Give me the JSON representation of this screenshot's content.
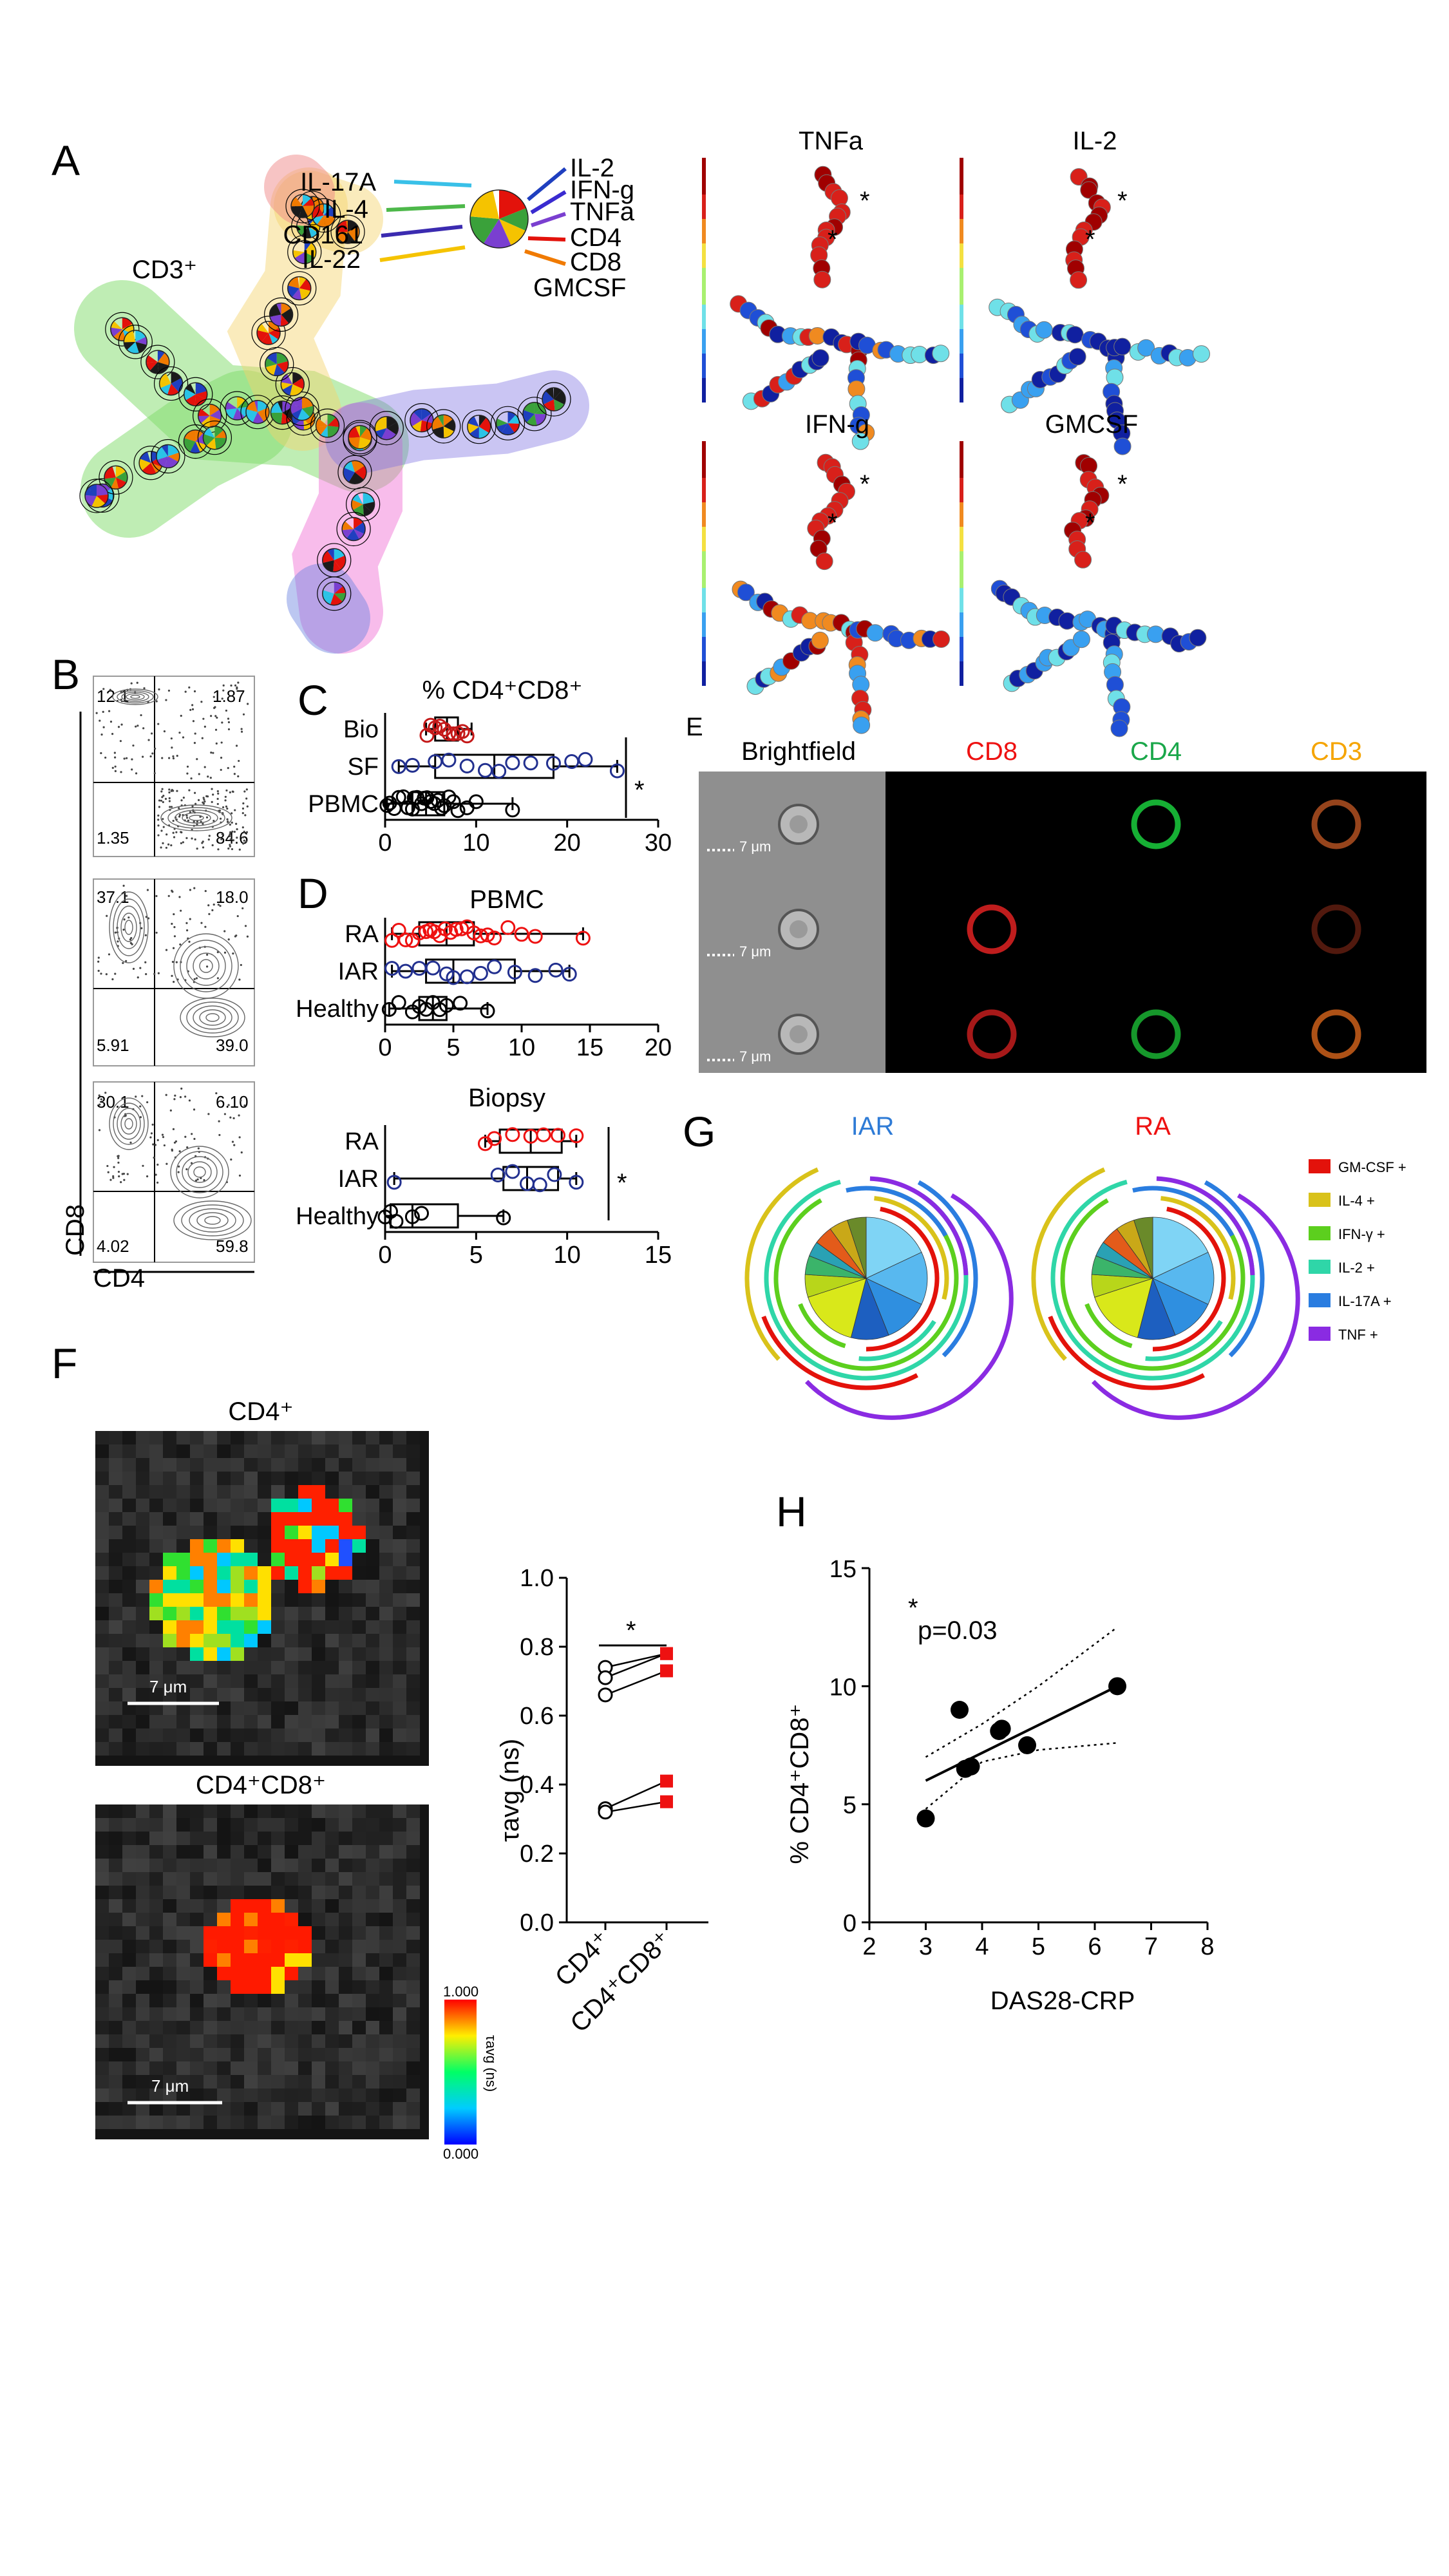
{
  "panels": {
    "A": "A",
    "B": "B",
    "C": "C",
    "D": "D",
    "E": "E",
    "F": "F",
    "G": "G",
    "H": "H"
  },
  "colors": {
    "red": "#e11",
    "blue": "#22308f",
    "black": "#000000",
    "green": "#2bb34a",
    "orange": "#f5a400",
    "purple": "#7d2bd4",
    "cyan": "#2ec4b6"
  },
  "panelA": {
    "cd3_label": "CD3⁺",
    "legend_left": [
      "IL-17A",
      "IL-4",
      "CD161",
      "IL-22"
    ],
    "legend_right": [
      "IL-2",
      "IFN-g",
      "TNFa",
      "CD4",
      "CD8",
      "GMCSF"
    ],
    "heatmap_titles": [
      "TNFa",
      "IL-2",
      "IFN-g",
      "GMCSF"
    ],
    "star": "*"
  },
  "panelB": {
    "xlabel": "CD4",
    "ylabel": "CD8",
    "plots": [
      {
        "ul": "12.1",
        "ur": "1.87",
        "ll": "1.35",
        "lr": "84.6"
      },
      {
        "ul": "37.1",
        "ur": "18.0",
        "ll": "5.91",
        "lr": "39.0"
      },
      {
        "ul": "30.1",
        "ur": "6.10",
        "ll": "4.02",
        "lr": "59.8"
      }
    ]
  },
  "panelC": {
    "title": "% CD4⁺CD8⁺",
    "star": "*",
    "chart_data": {
      "type": "box",
      "title": "% CD4+CD8+",
      "categories": [
        "Bio",
        "SF",
        "PBMC"
      ],
      "xlim": [
        0,
        30
      ],
      "xticks": [
        "0",
        "10",
        "20",
        "30"
      ],
      "boxes": [
        {
          "name": "Bio",
          "min": 4.5,
          "q1": 5.5,
          "median": 6.8,
          "q3": 8.0,
          "max": 9.5
        },
        {
          "name": "SF",
          "min": 1.5,
          "q1": 5.5,
          "median": 12.0,
          "q3": 18.5,
          "max": 25.5
        },
        {
          "name": "PBMC",
          "min": 0.2,
          "q1": 3.0,
          "median": 4.5,
          "q3": 6.5,
          "max": 14.0
        }
      ],
      "points": {
        "Bio": [
          4.6,
          5.0,
          5.5,
          6.0,
          6.5,
          7.0,
          7.5,
          8.0,
          8.5,
          9.0
        ],
        "SF": [
          1.5,
          3.0,
          5.5,
          7.0,
          9.0,
          11.0,
          12.5,
          14.0,
          16.0,
          18.5,
          20.5,
          22.0,
          25.5
        ],
        "PBMC": [
          0.2,
          0.5,
          1.0,
          1.5,
          2.0,
          2.5,
          3.0,
          3.2,
          3.5,
          4.0,
          4.3,
          4.6,
          5.0,
          5.4,
          5.8,
          6.2,
          6.5,
          7.0,
          7.5,
          8.0,
          9.0,
          10.0,
          14.0
        ]
      }
    }
  },
  "panelD": {
    "top_title": "PBMC",
    "bottom_title": "Biopsy",
    "star": "*",
    "top_chart": {
      "type": "box",
      "categories": [
        "RA",
        "IAR",
        "Healthy"
      ],
      "xlim": [
        0,
        20
      ],
      "xticks": [
        "0",
        "5",
        "10",
        "15",
        "20"
      ],
      "boxes": [
        {
          "name": "RA",
          "min": 0.5,
          "q1": 2.5,
          "median": 4.5,
          "q3": 6.5,
          "max": 14.5
        },
        {
          "name": "IAR",
          "min": 0.5,
          "q1": 3.0,
          "median": 5.0,
          "q3": 9.5,
          "max": 13.5
        },
        {
          "name": "Healthy",
          "min": 0.3,
          "q1": 2.5,
          "median": 3.5,
          "q3": 4.5,
          "max": 7.5
        }
      ],
      "points": {
        "RA": [
          0.5,
          1.0,
          1.5,
          2.0,
          2.5,
          3.0,
          3.3,
          3.6,
          4.0,
          4.4,
          4.8,
          5.2,
          5.6,
          6.0,
          6.5,
          7.0,
          7.5,
          8.0,
          9.0,
          10.0,
          11.0,
          14.5
        ],
        "IAR": [
          0.5,
          1.5,
          2.5,
          3.5,
          4.5,
          5.0,
          6.0,
          7.0,
          8.0,
          9.5,
          11.0,
          12.5,
          13.5
        ],
        "Healthy": [
          0.3,
          1.0,
          2.0,
          2.5,
          3.0,
          3.5,
          4.0,
          4.5,
          5.5,
          7.5
        ]
      }
    },
    "bottom_chart": {
      "type": "box",
      "categories": [
        "RA",
        "IAR",
        "Healthy"
      ],
      "xlim": [
        0,
        15
      ],
      "xticks": [
        "0",
        "5",
        "10",
        "15"
      ],
      "boxes": [
        {
          "name": "RA",
          "min": 5.5,
          "q1": 6.3,
          "median": 8.0,
          "q3": 9.7,
          "max": 10.5
        },
        {
          "name": "IAR",
          "min": 0.5,
          "q1": 6.5,
          "median": 7.8,
          "q3": 9.5,
          "max": 10.5
        },
        {
          "name": "Healthy",
          "min": 0.0,
          "q1": 0.3,
          "median": 1.5,
          "q3": 4.0,
          "max": 6.5
        }
      ],
      "points": {
        "RA": [
          5.5,
          6.0,
          7.0,
          8.0,
          8.7,
          9.5,
          10.5
        ],
        "IAR": [
          0.5,
          6.2,
          7.0,
          7.8,
          8.5,
          9.3,
          10.5
        ],
        "Healthy": [
          0.0,
          0.3,
          0.6,
          1.5,
          2.0,
          6.5
        ]
      }
    }
  },
  "panelE": {
    "headers": [
      "Brightfield",
      "CD8",
      "CD4",
      "CD3"
    ],
    "scale_label": "7 μm"
  },
  "panelF": {
    "title_top": "CD4⁺",
    "title_bottom": "CD4⁺CD8⁺",
    "scale_label": "7 μm",
    "colorbar_max": "1.000",
    "colorbar_min": "0.000",
    "colorbar_label": "τavg (ns)",
    "star": "*",
    "chart_data": {
      "type": "scatter",
      "ylabel": "τavg (ns)",
      "categories": [
        "CD4⁺",
        "CD4⁺CD8⁺"
      ],
      "ylim": [
        0,
        1.0
      ],
      "yticks": [
        "0.0",
        "0.2",
        "0.4",
        "0.6",
        "0.8",
        "1.0"
      ],
      "pairs": [
        [
          0.74,
          0.78
        ],
        [
          0.71,
          0.78
        ],
        [
          0.66,
          0.73
        ],
        [
          0.33,
          0.41
        ],
        [
          0.32,
          0.35
        ]
      ]
    }
  },
  "panelG": {
    "titles": [
      "IAR",
      "RA"
    ],
    "legend": [
      "GM-CSF +",
      "IL-4 +",
      "IFN-γ +",
      "IL-2 +",
      "IL-17A +",
      "TNF +"
    ],
    "legend_colors": [
      "#e3120b",
      "#d9c21a",
      "#5ccf1e",
      "#2fd6a8",
      "#2a7de0",
      "#8a2be2"
    ]
  },
  "panelH": {
    "pvalue": "p=0.03",
    "star": "*",
    "chart_data": {
      "type": "scatter",
      "xlabel": "DAS28-CRP",
      "ylabel": "% CD4⁺CD8⁺",
      "xlim": [
        2,
        8
      ],
      "ylim": [
        0,
        15
      ],
      "xticks": [
        "2",
        "3",
        "4",
        "5",
        "6",
        "7",
        "8"
      ],
      "yticks": [
        "0",
        "5",
        "10",
        "15"
      ],
      "x": [
        3.0,
        3.6,
        3.7,
        3.8,
        4.3,
        4.35,
        4.8,
        6.4
      ],
      "y": [
        4.4,
        9.0,
        6.5,
        6.6,
        8.1,
        8.2,
        7.5,
        10.0
      ],
      "fit": {
        "x": [
          3.0,
          6.4
        ],
        "y": [
          6.0,
          10.0
        ]
      },
      "ci_upper": {
        "x": [
          3.0,
          4.0,
          5.0,
          6.4
        ],
        "y": [
          7.0,
          8.4,
          10.0,
          12.5
        ]
      },
      "ci_lower": {
        "x": [
          3.0,
          4.0,
          5.0,
          6.4
        ],
        "y": [
          4.8,
          6.8,
          7.3,
          7.6
        ]
      }
    }
  }
}
